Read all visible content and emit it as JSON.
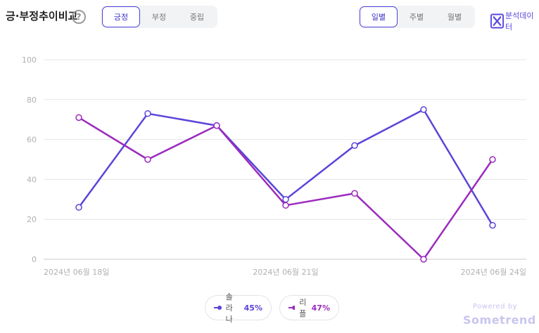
{
  "header": {
    "title": "긍·부정추이비교",
    "help_glyph": "?",
    "sentiment_tabs": [
      "긍정",
      "부정",
      "중립"
    ],
    "sentiment_active": 0,
    "period_tabs": [
      "일별",
      "주별",
      "월별"
    ],
    "period_active": 0,
    "export_label": "분석데이터"
  },
  "chart_data": {
    "type": "line",
    "categories": [
      "2024년 06월 18일",
      "2024년 06월 19일",
      "2024년 06월 20일",
      "2024년 06월 21일",
      "2024년 06월 22일",
      "2024년 06월 23일",
      "2024년 06월 24일"
    ],
    "tick_labels": [
      "2024년 06월 18일",
      "2024년 06월 21일",
      "2024년 06월 24일"
    ],
    "yticks": [
      0,
      20,
      40,
      60,
      80,
      100
    ],
    "ylim": [
      0,
      100
    ],
    "grid": true,
    "series": [
      {
        "name": "솔라나",
        "percent": "45%",
        "color": "#5a45d9",
        "values": [
          26,
          73,
          67,
          30,
          57,
          75,
          17
        ]
      },
      {
        "name": "리플",
        "percent": "47%",
        "color": "#9b2bbd",
        "values": [
          71,
          50,
          67,
          27,
          33,
          0,
          50
        ]
      }
    ]
  },
  "footer": {
    "powered": "Powered by",
    "brand": "Sometrend"
  }
}
